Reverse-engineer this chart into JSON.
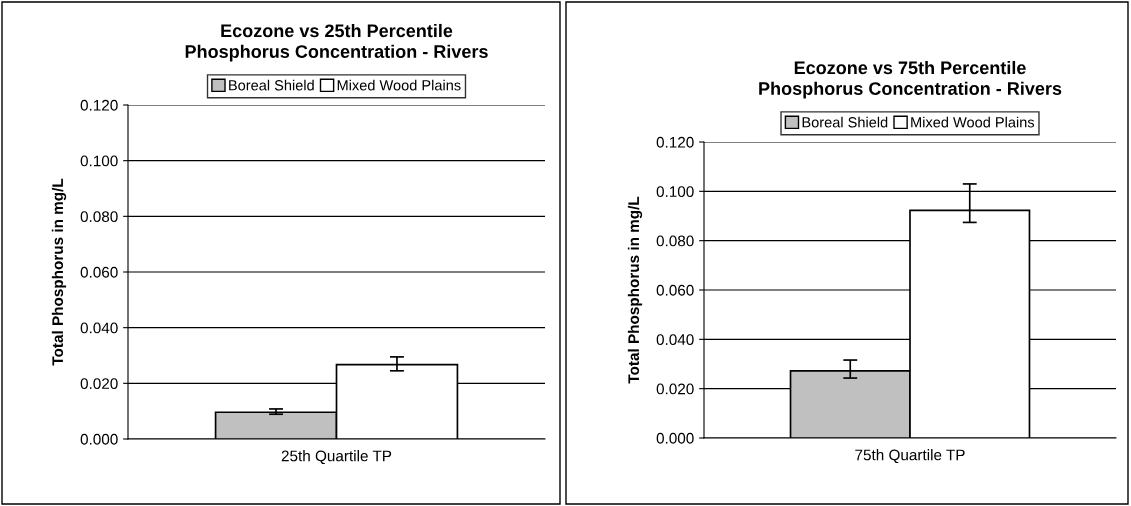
{
  "chart_data": [
    {
      "type": "bar",
      "title": "Ecozone vs 25th Percentile\nPhosphorus Concentration - Rivers",
      "ylabel": "Total Phosphorus in mg/L",
      "categories": [
        "25th Quartile TP"
      ],
      "series": [
        {
          "name": "Boreal Shield",
          "color": "#c0c0c0",
          "values": [
            0.0096
          ],
          "errors": [
            [
              0.0089,
              0.0108
            ]
          ]
        },
        {
          "name": "Mixed Wood Plains",
          "color": "#ffffff",
          "values": [
            0.0267
          ],
          "errors": [
            [
              0.0245,
              0.0295
            ]
          ]
        }
      ],
      "ylim": [
        0,
        0.12
      ],
      "yticks": [
        {
          "value": 0,
          "label": "0.000"
        },
        {
          "value": 0.02,
          "label": "0.020"
        },
        {
          "value": 0.04,
          "label": "0.040"
        },
        {
          "value": 0.06,
          "label": "0.060"
        },
        {
          "value": 0.08,
          "label": "0.080"
        },
        {
          "value": 0.1,
          "label": "0.100"
        },
        {
          "value": 0.12,
          "label": "0.120"
        }
      ],
      "grid": "y",
      "legend": "top"
    },
    {
      "type": "bar",
      "title": "Ecozone vs 75th Percentile\nPhosphorus Concentration - Rivers",
      "ylabel": "Total Phosphorus in mg/L",
      "categories": [
        "75th Quartile TP"
      ],
      "series": [
        {
          "name": "Boreal Shield",
          "color": "#c0c0c0",
          "values": [
            0.0272
          ],
          "errors": [
            [
              0.0243,
              0.0316
            ]
          ]
        },
        {
          "name": "Mixed Wood Plains",
          "color": "#ffffff",
          "values": [
            0.0923
          ],
          "errors": [
            [
              0.0874,
              0.103
            ]
          ]
        }
      ],
      "ylim": [
        0,
        0.12
      ],
      "yticks": [
        {
          "value": 0,
          "label": "0.000"
        },
        {
          "value": 0.02,
          "label": "0.020"
        },
        {
          "value": 0.04,
          "label": "0.040"
        },
        {
          "value": 0.06,
          "label": "0.060"
        },
        {
          "value": 0.08,
          "label": "0.080"
        },
        {
          "value": 0.1,
          "label": "0.100"
        },
        {
          "value": 0.12,
          "label": "0.120"
        }
      ],
      "grid": "y",
      "legend": "top"
    }
  ]
}
